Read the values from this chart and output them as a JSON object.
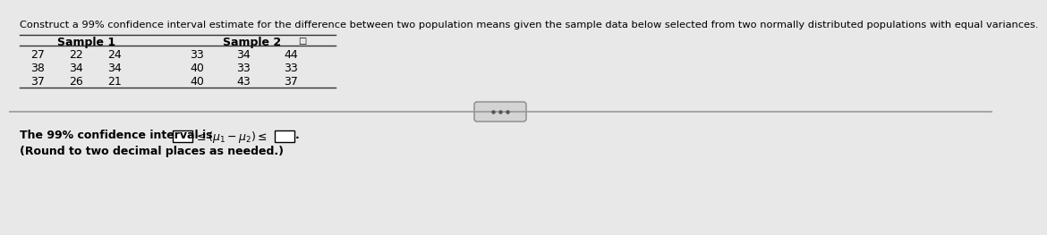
{
  "title": "Construct a 99% confidence interval estimate for the difference between two population means given the sample data below selected from two normally distributed populations with equal variances.",
  "title_fontsize": 8.2,
  "sample1_header": "Sample 1",
  "sample2_header": "Sample 2",
  "sample1_data": [
    [
      27,
      22,
      24
    ],
    [
      38,
      34,
      34
    ],
    [
      37,
      26,
      21
    ]
  ],
  "sample2_data": [
    [
      33,
      34,
      44
    ],
    [
      40,
      33,
      33
    ],
    [
      40,
      43,
      37
    ]
  ],
  "ci_text_prefix": "The 99% confidence interval is ",
  "ci_text_note": "(Round to two decimal places as needed.)",
  "bg_color": "#e8e8e8",
  "text_color": "#000000",
  "font_size_table": 9,
  "font_size_ci": 9,
  "font_size_note": 9,
  "table_line_color": "#333333",
  "divider_color": "#999999"
}
